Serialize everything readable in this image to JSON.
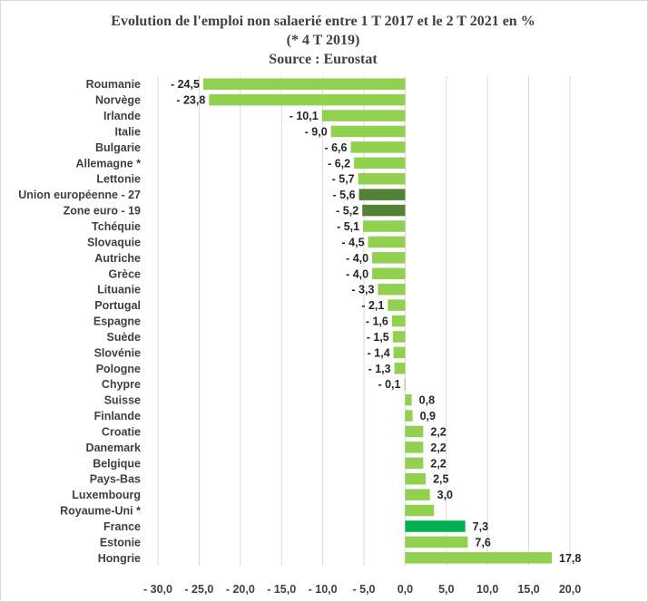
{
  "chart_data": {
    "type": "bar",
    "orientation": "horizontal",
    "title_lines": [
      "Evolution de l'emploi non salaerié entre 1 T 2017 et le 2 T 2021 en %",
      "(* 4 T 2019)",
      "Source : Eurostat"
    ],
    "categories": [
      "Roumanie",
      "Norvège",
      "Irlande",
      "Italie",
      "Bulgarie",
      "Allemagne *",
      "Lettonie",
      "Union européenne - 27",
      "Zone euro - 19",
      "Tchéquie",
      "Slovaquie",
      "Autriche",
      "Grèce",
      "Lituanie",
      "Portugal",
      "Espagne",
      "Suède",
      "Slovénie",
      "Pologne",
      "Chypre",
      "Suisse",
      "Finlande",
      "Croatie",
      "Danemark",
      "Belgique",
      "Pays-Bas",
      "Luxembourg",
      "Royaume-Uni *",
      "France",
      "Estonie",
      "Hongrie"
    ],
    "values": [
      -24.5,
      -23.8,
      -10.1,
      -9.0,
      -6.6,
      -6.2,
      -5.7,
      -5.6,
      -5.2,
      -5.1,
      -4.5,
      -4.0,
      -4.0,
      -3.3,
      -2.1,
      -1.6,
      -1.5,
      -1.4,
      -1.3,
      -0.1,
      0.8,
      0.9,
      2.2,
      2.2,
      2.2,
      2.5,
      3.0,
      3.5,
      7.3,
      7.6,
      17.8
    ],
    "value_labels": [
      "- 24,5",
      "- 23,8",
      "- 10,1",
      "- 9,0",
      "- 6,6",
      "- 6,2",
      "- 5,7",
      "- 5,6",
      "- 5,2",
      "- 5,1",
      "- 4,5",
      "- 4,0",
      "- 4,0",
      "- 3,3",
      "- 2,1",
      "- 1,6",
      "- 1,5",
      "- 1,4",
      "- 1,3",
      "- 0,1",
      "0,8",
      "0,9",
      "2,2",
      "2,2",
      "2,2",
      "2,5",
      "3,0",
      "",
      "7,3",
      "7,6",
      "17,8"
    ],
    "bar_colors": [
      "#92d050",
      "#92d050",
      "#92d050",
      "#92d050",
      "#92d050",
      "#92d050",
      "#92d050",
      "#538135",
      "#538135",
      "#92d050",
      "#92d050",
      "#92d050",
      "#92d050",
      "#92d050",
      "#92d050",
      "#92d050",
      "#92d050",
      "#92d050",
      "#92d050",
      "#92d050",
      "#92d050",
      "#92d050",
      "#92d050",
      "#92d050",
      "#92d050",
      "#92d050",
      "#92d050",
      "#92d050",
      "#00b050",
      "#92d050",
      "#92d050"
    ],
    "xlim": [
      -30,
      20
    ],
    "x_ticks": [
      -30,
      -25,
      -20,
      -15,
      -10,
      -5,
      0,
      5,
      10,
      15,
      20
    ],
    "x_tick_labels": [
      "- 30,0",
      "- 25,0",
      "- 20,0",
      "- 15,0",
      "- 10,0",
      "- 5,0",
      "0,0",
      "5,0",
      "10,0",
      "15,0",
      "20,0"
    ],
    "grid": true,
    "grid_color": "#d9d9d9",
    "legend": "none"
  }
}
